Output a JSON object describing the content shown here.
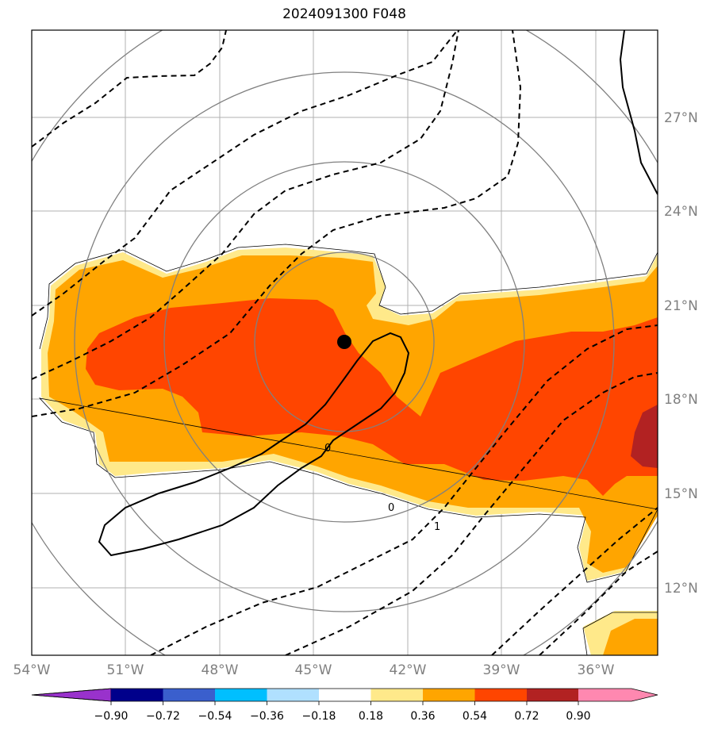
{
  "title": "2024091300 F048",
  "map": {
    "lon_labels": [
      "54°W",
      "51°W",
      "48°W",
      "45°W",
      "42°W",
      "39°W",
      "36°W"
    ],
    "lat_labels": [
      "27°N",
      "24°N",
      "21°N",
      "18°N",
      "15°N",
      "12°N"
    ],
    "contour_labels": [
      "0",
      "0",
      "1"
    ],
    "center_marker": {
      "lon": -44.0,
      "lat": 19.8
    }
  },
  "colorbar": {
    "ticks": [
      "−0.90",
      "−0.72",
      "−0.54",
      "−0.36",
      "−0.18",
      "0.18",
      "0.36",
      "0.54",
      "0.72",
      "0.90"
    ],
    "colors": [
      "#9932cc",
      "#00008b",
      "#3a5fcd",
      "#00bfff",
      "#b0e0ff",
      "#ffffff",
      "#ffe98a",
      "#ffa500",
      "#ff4500",
      "#b22222",
      "#ff88b0"
    ]
  },
  "fill_colors": {
    "light": "#ffe98a",
    "orange": "#ffa500",
    "red": "#ff4500",
    "dark": "#b22222"
  }
}
